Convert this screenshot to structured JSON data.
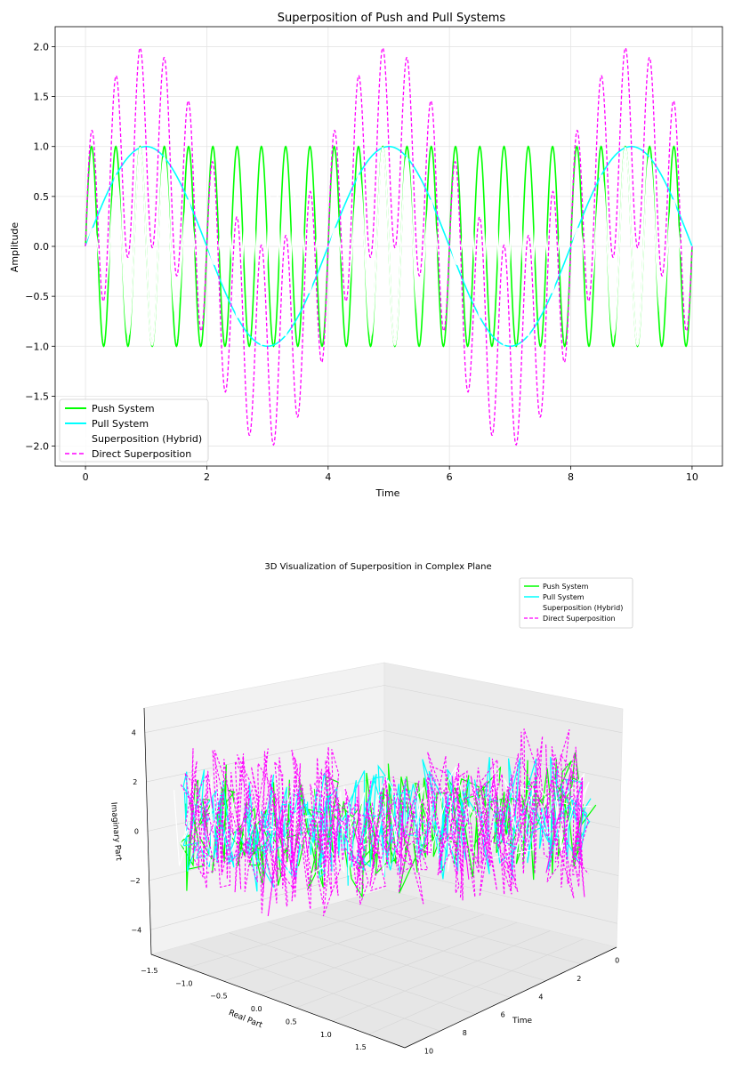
{
  "chart_data": [
    {
      "type": "line",
      "title": "Superposition of Push and Pull Systems",
      "xlabel": "Time",
      "ylabel": "Amplitude",
      "xlim": [
        -0.5,
        10.5
      ],
      "ylim": [
        -2.2,
        2.2
      ],
      "xticks": [
        0,
        2,
        4,
        6,
        8,
        10
      ],
      "xtick_labels": [
        "0",
        "2",
        "4",
        "6",
        "8",
        "10"
      ],
      "yticks": [
        2.0,
        1.5,
        1.0,
        0.5,
        0.0,
        -0.5,
        -1.0,
        -1.5,
        -2.0
      ],
      "ytick_labels": [
        "2.0",
        "1.5",
        "1.0",
        "0.5",
        "0.0",
        "−0.5",
        "−1.0",
        "−1.5",
        "−2.0"
      ],
      "grid": true,
      "legend": "lower-left",
      "x_range": [
        0,
        10
      ],
      "series": [
        {
          "name": "Push System",
          "function": "sin(2π · 2.5 · t)",
          "freq": 2.5,
          "amplitude": 1.0,
          "color": "#00ff00",
          "style": "solid"
        },
        {
          "name": "Pull System",
          "function": "sin(2π · 0.25 · t)",
          "freq": 0.25,
          "amplitude": 1.0,
          "color": "#00ffff",
          "style": "solid"
        },
        {
          "name": "Superposition (Hybrid)",
          "function": "push · pull",
          "color": "#ffffff",
          "style": "solid"
        },
        {
          "name": "Direct Superposition",
          "function": "push + pull",
          "color": "#ff00ff",
          "style": "dashed"
        }
      ]
    },
    {
      "type": "line3d",
      "title": "3D Visualization of Superposition in Complex Plane",
      "xlabel": "Real Part",
      "ylabel": "Time",
      "zlabel": "Imaginary Part",
      "real_ticks": [
        "−1.5",
        "−1.0",
        "−0.5",
        "0.0",
        "0.5",
        "1.0",
        "1.5"
      ],
      "time_ticks": [
        "0",
        "2",
        "4",
        "6",
        "8",
        "10"
      ],
      "imag_ticks": [
        "4",
        "2",
        "0",
        "−2",
        "−4"
      ],
      "legend": "top-right",
      "series": [
        {
          "name": "Push System",
          "color": "#00ff00",
          "style": "solid"
        },
        {
          "name": "Pull System",
          "color": "#00ffff",
          "style": "solid"
        },
        {
          "name": "Superposition (Hybrid)",
          "color": "#ffffff",
          "style": "solid"
        },
        {
          "name": "Direct Superposition",
          "color": "#ff00ff",
          "style": "dashed"
        }
      ]
    }
  ]
}
